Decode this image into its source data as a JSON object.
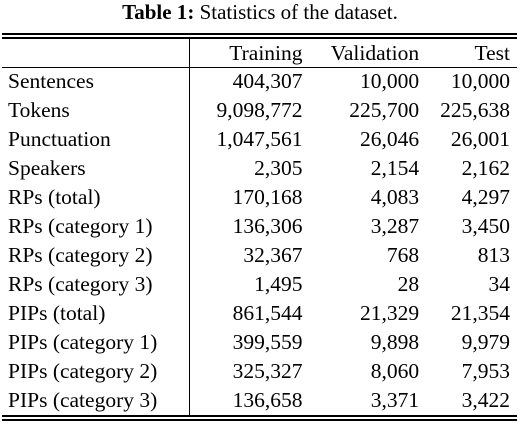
{
  "caption": {
    "label": "Table 1",
    "separator": ":",
    "text": " Statistics of the dataset."
  },
  "table": {
    "headers": [
      "",
      "Training",
      "Validation",
      "Test"
    ],
    "rows": [
      {
        "label": "Sentences",
        "training": "404,307",
        "validation": "10,000",
        "test": "10,000"
      },
      {
        "label": "Tokens",
        "training": "9,098,772",
        "validation": "225,700",
        "test": "225,638"
      },
      {
        "label": "Punctuation",
        "training": "1,047,561",
        "validation": "26,046",
        "test": "26,001"
      },
      {
        "label": "Speakers",
        "training": "2,305",
        "validation": "2,154",
        "test": "2,162"
      },
      {
        "label": "RPs (total)",
        "training": "170,168",
        "validation": "4,083",
        "test": "4,297"
      },
      {
        "label": "RPs (category 1)",
        "training": "136,306",
        "validation": "3,287",
        "test": "3,450"
      },
      {
        "label": "RPs (category 2)",
        "training": "32,367",
        "validation": "768",
        "test": "813"
      },
      {
        "label": "RPs (category 3)",
        "training": "1,495",
        "validation": "28",
        "test": "34"
      },
      {
        "label": "PIPs (total)",
        "training": "861,544",
        "validation": "21,329",
        "test": "21,354"
      },
      {
        "label": "PIPs (category 1)",
        "training": "399,559",
        "validation": "9,898",
        "test": "9,979"
      },
      {
        "label": "PIPs (category 2)",
        "training": "325,327",
        "validation": "8,060",
        "test": "7,953"
      },
      {
        "label": "PIPs (category 3)",
        "training": "136,658",
        "validation": "3,371",
        "test": "3,422"
      }
    ]
  }
}
